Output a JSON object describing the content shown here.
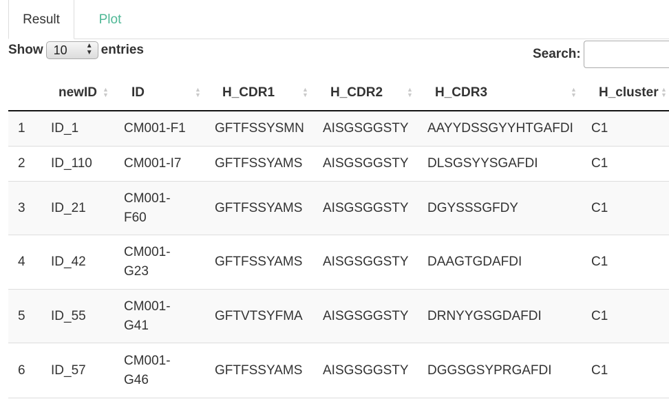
{
  "tabs": [
    {
      "label": "Result",
      "active": true
    },
    {
      "label": "Plot",
      "active": false
    }
  ],
  "length": {
    "show_label": "Show",
    "selected": "10",
    "entries_label": "entries"
  },
  "search": {
    "label": "Search:",
    "value": ""
  },
  "table": {
    "columns": [
      "",
      "newID",
      "ID",
      "H_CDR1",
      "H_CDR2",
      "H_CDR3",
      "H_cluster"
    ],
    "rows": [
      [
        "1",
        "ID_1",
        "CM001-F1",
        "GFTFSSYSMN",
        "AISGSGGSTY",
        "AAYYDSSGYYHTGAFDI",
        "C1"
      ],
      [
        "2",
        "ID_110",
        "CM001-I7",
        "GFTFSSYAMS",
        "AISGSGGSTY",
        "DLSGSYYSGAFDI",
        "C1"
      ],
      [
        "3",
        "ID_21",
        "CM001-F60",
        "GFTFSSYAMS",
        "AISGSGGSTY",
        "DGYSSSGFDY",
        "C1"
      ],
      [
        "4",
        "ID_42",
        "CM001-G23",
        "GFTFSSYAMS",
        "AISGSGGSTY",
        "DAAGTGDAFDI",
        "C1"
      ],
      [
        "5",
        "ID_55",
        "CM001-G41",
        "GFTVTSYFMA",
        "AISGSGGSTY",
        "DRNYYGSGDAFDI",
        "C1"
      ],
      [
        "6",
        "ID_57",
        "CM001-G46",
        "GFTFSSYAMS",
        "AISGSGGSTY",
        "DGGSGSYPRGAFDI",
        "C1"
      ]
    ]
  },
  "colors": {
    "tab_inactive": "#4fb896",
    "header_border": "#111111",
    "row_border": "#dddddd",
    "row_odd": "#f9f9f9"
  }
}
